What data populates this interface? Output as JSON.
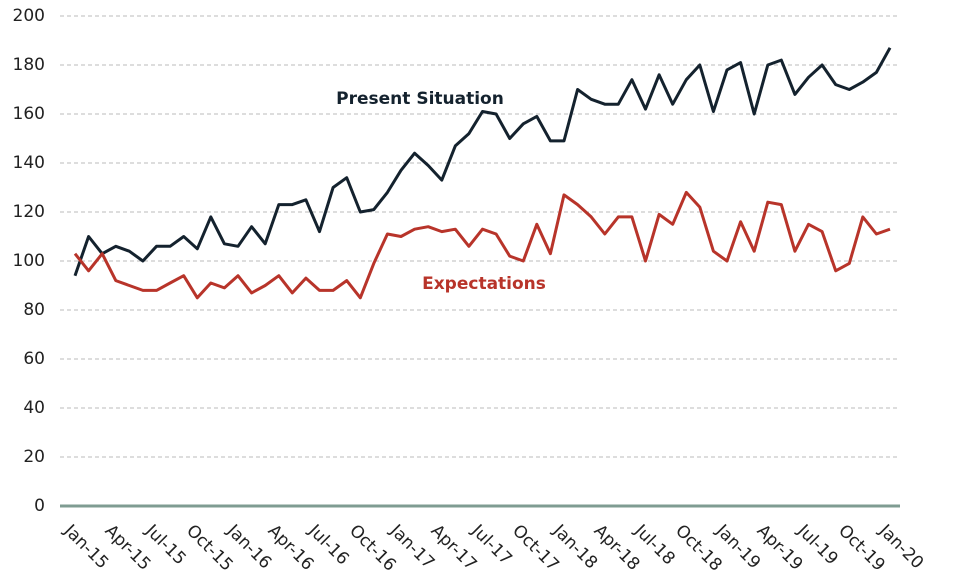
{
  "chart_data": {
    "type": "line",
    "categories": [
      "Jan-15",
      null,
      null,
      "Apr-15",
      null,
      null,
      "Jul-15",
      null,
      null,
      "Oct-15",
      null,
      null,
      "Jan-16",
      null,
      null,
      "Apr-16",
      null,
      null,
      "Jul-16",
      null,
      null,
      "Oct-16",
      null,
      null,
      "Jan-17",
      null,
      null,
      "Apr-17",
      null,
      null,
      "Jul-17",
      null,
      null,
      "Oct-17",
      null,
      null,
      "Jan-18",
      null,
      null,
      "Apr-18",
      null,
      null,
      "Jul-18",
      null,
      null,
      "Oct-18",
      null,
      null,
      "Jan-19",
      null,
      null,
      "Apr-19",
      null,
      null,
      "Jul-19",
      null,
      null,
      "Oct-19",
      null,
      null,
      "Jan-20"
    ],
    "series": [
      {
        "name": "Present Situation",
        "color": "#14222e",
        "values": [
          94,
          110,
          103,
          106,
          104,
          100,
          106,
          106,
          110,
          105,
          118,
          107,
          106,
          114,
          107,
          123,
          123,
          125,
          112,
          130,
          134,
          120,
          121,
          128,
          137,
          144,
          139,
          133,
          147,
          152,
          161,
          160,
          150,
          156,
          159,
          149,
          149,
          170,
          166,
          164,
          164,
          174,
          162,
          176,
          164,
          174,
          180,
          161,
          178,
          181,
          160,
          180,
          182,
          168,
          175,
          180,
          172,
          170,
          173,
          177,
          187
        ]
      },
      {
        "name": "Expectations",
        "color": "#b8342a",
        "values": [
          103,
          96,
          103,
          92,
          90,
          88,
          88,
          91,
          94,
          85,
          91,
          89,
          94,
          87,
          90,
          94,
          87,
          93,
          88,
          88,
          92,
          85,
          99,
          111,
          110,
          113,
          114,
          112,
          113,
          106,
          113,
          111,
          102,
          100,
          115,
          103,
          127,
          123,
          118,
          111,
          118,
          118,
          100,
          119,
          115,
          128,
          122,
          104,
          100,
          116,
          104,
          124,
          123,
          104,
          115,
          112,
          96,
          99,
          118,
          111,
          113
        ]
      }
    ],
    "ylim": [
      0,
      200
    ],
    "yticks": [
      0,
      20,
      40,
      60,
      80,
      100,
      120,
      140,
      160,
      180,
      200
    ],
    "grid": true
  }
}
